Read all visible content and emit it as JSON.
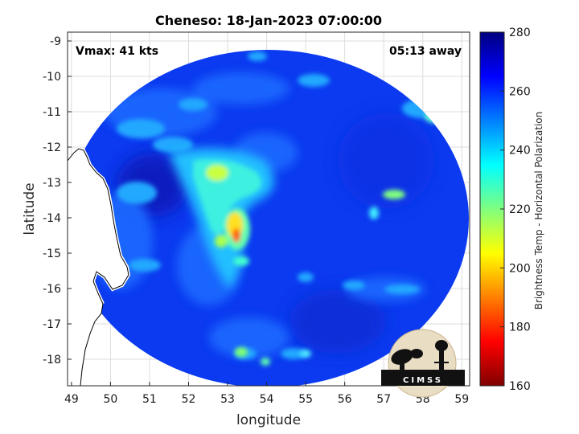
{
  "title": "Cheneso: 18-Jan-2023 07:00:00",
  "vmax_text": "Vmax: 41 kts",
  "time_away_text": "05:13 away",
  "axes": {
    "xlabel": "longitude",
    "ylabel": "latitude",
    "x_ticks": [
      "49",
      "50",
      "51",
      "52",
      "53",
      "54",
      "55",
      "56",
      "57",
      "58",
      "59"
    ],
    "y_ticks": [
      "-9",
      "-10",
      "-11",
      "-12",
      "-13",
      "-14",
      "-15",
      "-16",
      "-17",
      "-18"
    ],
    "xlim": [
      48.9,
      59.2
    ],
    "ylim": [
      -18.75,
      -8.75
    ]
  },
  "colorbar": {
    "label": "Brightness Temp - Horizontal Polarization",
    "ticks": [
      "280",
      "260",
      "240",
      "220",
      "200",
      "180",
      "160"
    ],
    "range": [
      160,
      280
    ],
    "colormap": "jet"
  },
  "logo": {
    "text": "CIMSS"
  },
  "colors": {
    "background": "#0a30e0",
    "coast": "#ffffff",
    "land": "#ffffff"
  }
}
